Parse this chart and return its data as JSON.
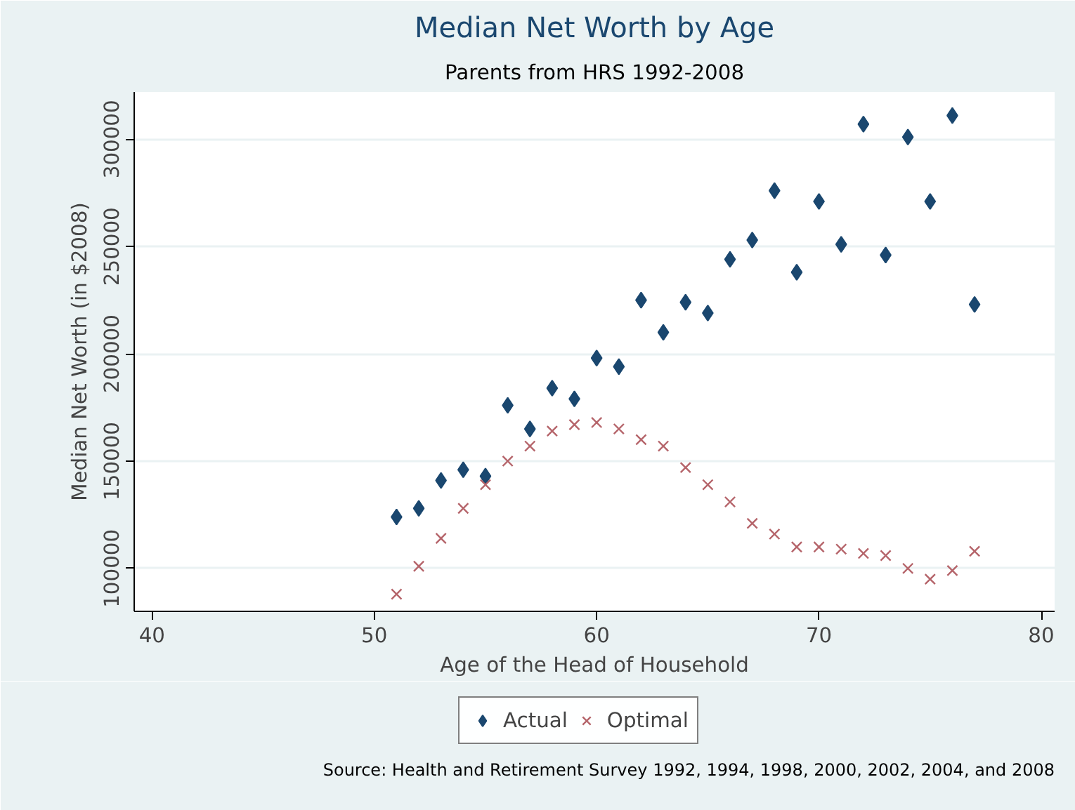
{
  "chart_data": {
    "type": "scatter",
    "title": "Median Net Worth by Age",
    "subtitle": "Parents from HRS 1992-2008",
    "xlabel": "Age of the Head of Household",
    "ylabel": "Median Net Worth (in $2008)",
    "x": [
      51,
      52,
      53,
      54,
      55,
      56,
      57,
      58,
      59,
      60,
      61,
      62,
      63,
      64,
      65,
      66,
      67,
      68,
      69,
      70,
      71,
      72,
      73,
      74,
      75,
      76,
      77
    ],
    "series": [
      {
        "name": "Actual",
        "color": "#1a476f",
        "marker": "diamond",
        "values": [
          124000,
          128000,
          141000,
          146000,
          143000,
          176000,
          165000,
          184000,
          179000,
          198000,
          194000,
          225000,
          210000,
          224000,
          219000,
          244000,
          253000,
          276000,
          238000,
          271000,
          251000,
          307000,
          246000,
          301000,
          271000,
          311000,
          223000
        ]
      },
      {
        "name": "Optimal",
        "color": "#b5646a",
        "marker": "cross",
        "values": [
          88000,
          101000,
          114000,
          128000,
          139000,
          150000,
          157000,
          164000,
          167000,
          168000,
          165000,
          160000,
          157000,
          147000,
          139000,
          131000,
          121000,
          116000,
          110000,
          110000,
          109000,
          107000,
          106000,
          100000,
          95000,
          99000,
          108000
        ]
      }
    ],
    "xlim": [
      39.2,
      80.6
    ],
    "ylim": [
      80000,
      322000
    ],
    "xticks": [
      40,
      50,
      60,
      70,
      80
    ],
    "yticks": [
      100000,
      150000,
      200000,
      250000,
      300000
    ],
    "grid": "y",
    "legend": "bottom",
    "annotations": [
      "Source: Health and Retirement Survey 1992, 1994, 1998, 2000, 2002, 2004, and 2008"
    ]
  }
}
